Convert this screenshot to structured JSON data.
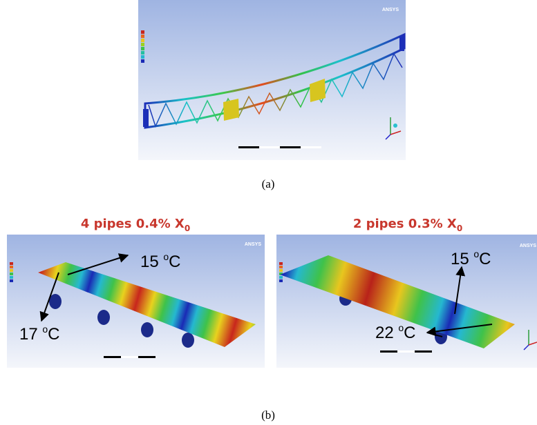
{
  "figure": {
    "panel_a": {
      "logo": "ANSYS",
      "caption": "(a)"
    },
    "panel_b": {
      "caption": "(b)",
      "left": {
        "title": {
          "text": "4 pipes 0.4% X",
          "sub": "0"
        },
        "logo": "ANSYS",
        "labels": [
          {
            "value": "15 ",
            "sup": "o",
            "unit": "C"
          },
          {
            "value": "17 ",
            "sup": "o",
            "unit": "C"
          }
        ]
      },
      "right": {
        "title": {
          "text": "2 pipes 0.3% X",
          "sub": "0"
        },
        "logo": "ANSYS",
        "labels": [
          {
            "value": "15 ",
            "sup": "o",
            "unit": "C"
          },
          {
            "value": "22 ",
            "sup": "o",
            "unit": "C"
          }
        ]
      }
    }
  }
}
